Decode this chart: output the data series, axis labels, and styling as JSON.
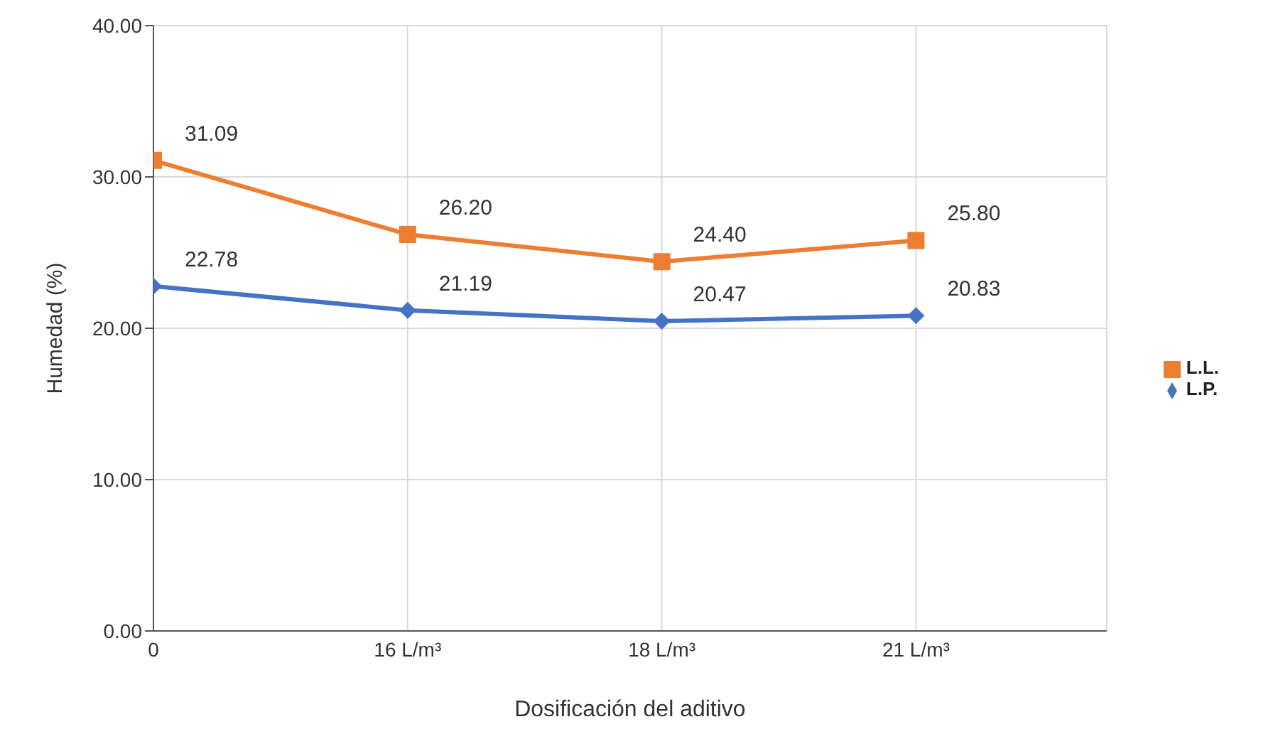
{
  "chart_data": {
    "type": "line",
    "xlabel": "Dosificación del aditivo",
    "ylabel": "Humedad (%)",
    "categories": [
      "0",
      "16 L/m³",
      "18 L/m³",
      "21 L/m³"
    ],
    "series": [
      {
        "name": "L.L.",
        "color": "#ed7d31",
        "marker": "square",
        "values": [
          31.09,
          26.2,
          24.4,
          25.8
        ],
        "value_labels": [
          "31.09",
          "26.20",
          "24.40",
          "25.80"
        ]
      },
      {
        "name": "L.P.",
        "color": "#4472c4",
        "marker": "diamond",
        "values": [
          22.78,
          21.19,
          20.47,
          20.83
        ],
        "value_labels": [
          "22.78",
          "21.19",
          "20.47",
          "20.83"
        ]
      }
    ],
    "ylim": [
      0,
      40
    ],
    "yticks": [
      {
        "value": 0,
        "label": "0.00"
      },
      {
        "value": 10,
        "label": "10.00"
      },
      {
        "value": 20,
        "label": "20.00"
      },
      {
        "value": 30,
        "label": "30.00"
      },
      {
        "value": 40,
        "label": "40.00"
      }
    ],
    "grid": true,
    "legend": "right",
    "line_style": "solid"
  }
}
